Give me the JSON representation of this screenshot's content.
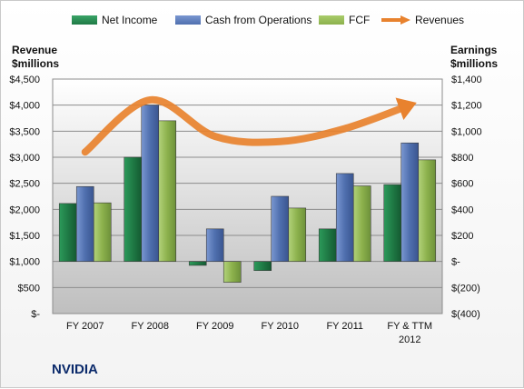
{
  "chart_data": {
    "type": "bar",
    "title": "NVIDIA",
    "categories": [
      "FY 2007",
      "FY 2008",
      "FY 2009",
      "FY 2010",
      "FY 2011",
      "FY & TTM 2012"
    ],
    "y_left": {
      "label": "Revenue $millions",
      "range": [
        0,
        4500
      ],
      "ticks": [
        "$-",
        "$500",
        "$1,000",
        "$1,500",
        "$2,000",
        "$2,500",
        "$3,000",
        "$3,500",
        "$4,000",
        "$4,500"
      ]
    },
    "y_right": {
      "label": "Earnings $millions",
      "range": [
        -400,
        1400
      ],
      "ticks": [
        "$(400)",
        "$(200)",
        "$-",
        "$200",
        "$400",
        "$600",
        "$800",
        "$1,000",
        "$1,200",
        "$1,400"
      ]
    },
    "series": [
      {
        "name": "Net Income",
        "axis": "right",
        "color": "#1f7a45",
        "values": [
          445,
          800,
          -30,
          -70,
          250,
          590
        ]
      },
      {
        "name": "Cash from Operations",
        "axis": "right",
        "color": "#4f6fae",
        "values": [
          575,
          1200,
          250,
          500,
          675,
          910
        ]
      },
      {
        "name": "FCF",
        "axis": "right",
        "color": "#8cb14c",
        "values": [
          450,
          1080,
          -160,
          410,
          580,
          780
        ]
      },
      {
        "name": "Revenues",
        "axis": "left",
        "color": "#e8822e",
        "type": "line",
        "values": [
          3100,
          4100,
          3400,
          3300,
          3550,
          4000
        ]
      }
    ],
    "grid": true,
    "legend_position": "top"
  },
  "legend": [
    {
      "label": "Net Income",
      "color": "#1f7a45"
    },
    {
      "label": "Cash from Operations",
      "color": "#4f6fae"
    },
    {
      "label": "FCF",
      "color": "#8cb14c"
    },
    {
      "label": "Revenues",
      "color": "#e8822e"
    }
  ],
  "left_axis_title": [
    "Revenue",
    "$millions"
  ],
  "right_axis_title": [
    "Earnings",
    "$millions"
  ],
  "company": "NVIDIA"
}
